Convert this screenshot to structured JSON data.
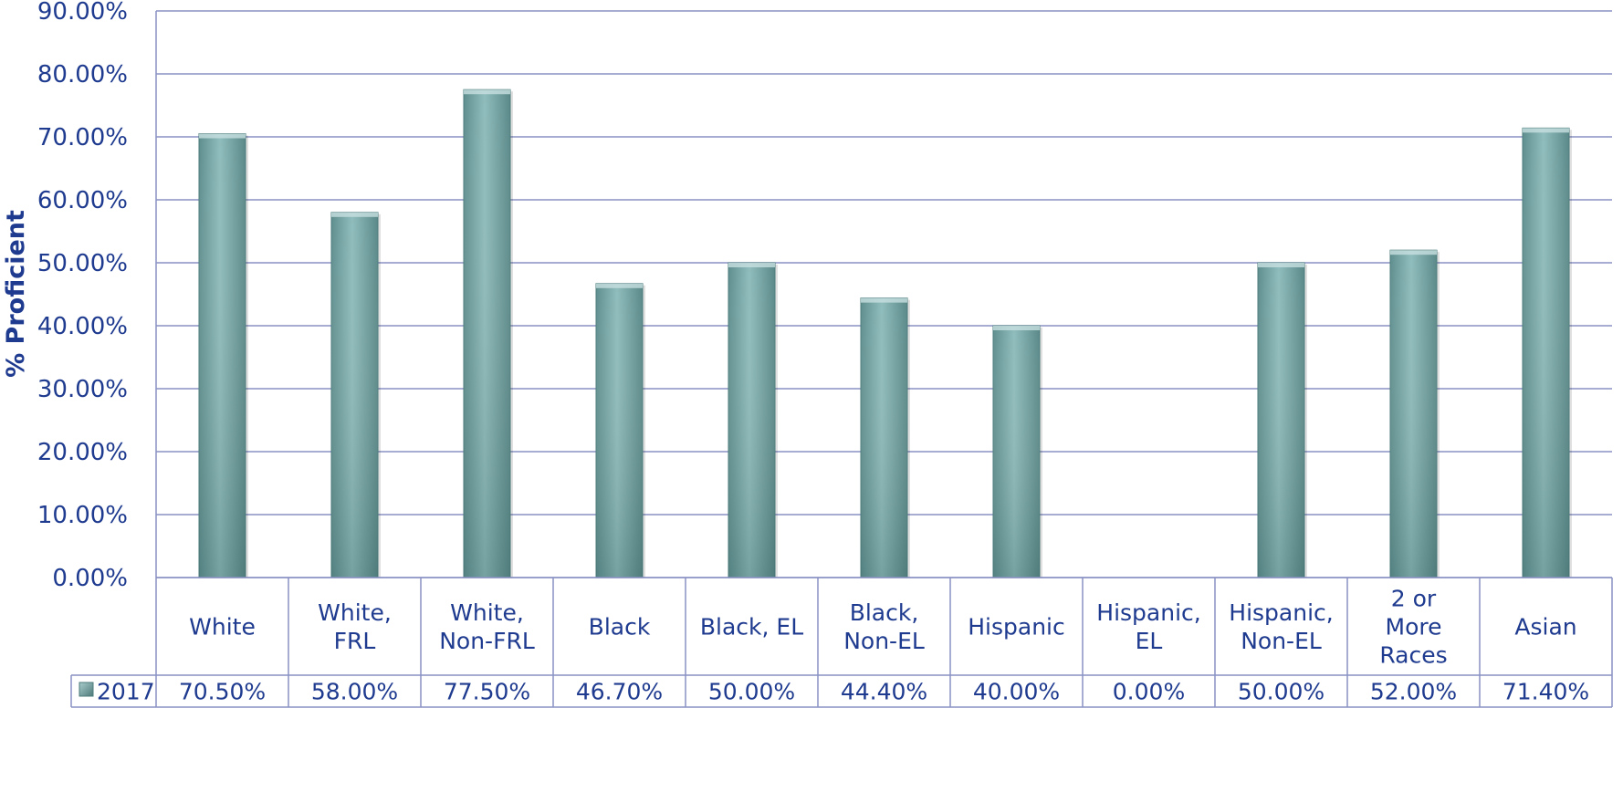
{
  "chart_data": {
    "type": "bar",
    "ylabel": "% Proficient",
    "xlabel": "",
    "ylim": [
      0,
      90
    ],
    "y_ticks": [
      0,
      10,
      20,
      30,
      40,
      50,
      60,
      70,
      80,
      90
    ],
    "y_tick_labels": [
      "0.00%",
      "10.00%",
      "20.00%",
      "30.00%",
      "40.00%",
      "50.00%",
      "60.00%",
      "70.00%",
      "80.00%",
      "90.00%"
    ],
    "categories": [
      "White",
      "White, FRL",
      "White, Non-FRL",
      "Black",
      "Black, EL",
      "Black, Non-EL",
      "Hispanic",
      "Hispanic, EL",
      "Hispanic, Non-EL",
      "2 or More Races",
      "Asian"
    ],
    "category_lines": [
      [
        "White"
      ],
      [
        "White,",
        "FRL"
      ],
      [
        "White,",
        "Non-FRL"
      ],
      [
        "Black"
      ],
      [
        "Black, EL"
      ],
      [
        "Black,",
        "Non-EL"
      ],
      [
        "Hispanic"
      ],
      [
        "Hispanic,",
        "EL"
      ],
      [
        "Hispanic,",
        "Non-EL"
      ],
      [
        "2 or",
        "More",
        "Races"
      ],
      [
        "Asian"
      ]
    ],
    "series": [
      {
        "name": "2017",
        "values": [
          70.5,
          58.0,
          77.5,
          46.7,
          50.0,
          44.4,
          40.0,
          0.0,
          50.0,
          52.0,
          71.4
        ],
        "labels": [
          "70.50%",
          "58.00%",
          "77.50%",
          "46.70%",
          "50.00%",
          "44.40%",
          "40.00%",
          "0.00%",
          "50.00%",
          "52.00%",
          "71.40%"
        ]
      }
    ],
    "grid": true,
    "legend": "data-table",
    "colors": {
      "bar": "#7fb0b0",
      "bar_dark": "#5e8c8c",
      "axis_text": "#1f3b8f",
      "grid": "#8a92c4"
    }
  }
}
